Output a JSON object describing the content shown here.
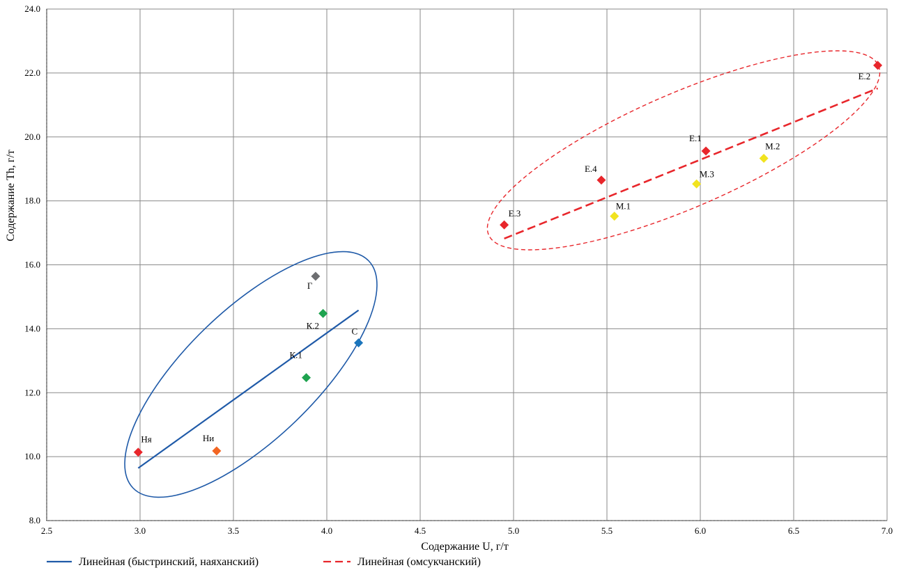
{
  "chart_data": {
    "type": "scatter",
    "xlabel": "Содержание U, г/т",
    "ylabel": "Содержание Th, г/т",
    "xlim": [
      2.5,
      7.0
    ],
    "ylim": [
      8.0,
      24.0
    ],
    "xticks": [
      "2.5",
      "3.0",
      "3.5",
      "4.0",
      "4.5",
      "5.0",
      "5.5",
      "6.0",
      "6.5",
      "7.0"
    ],
    "yticks": [
      "8.0",
      "10.0",
      "12.0",
      "14.0",
      "16.0",
      "18.0",
      "20.0",
      "22.0",
      "24.0"
    ],
    "grid": true,
    "points": [
      {
        "label": "Ня",
        "x": 2.99,
        "y": 10.14,
        "color": "#e8262b"
      },
      {
        "label": "Ни",
        "x": 3.41,
        "y": 10.18,
        "color": "#f26522"
      },
      {
        "label": "К.1",
        "x": 3.89,
        "y": 12.47,
        "color": "#1ea34f"
      },
      {
        "label": "К.2",
        "x": 3.98,
        "y": 14.48,
        "color": "#1ea34f"
      },
      {
        "label": "Г",
        "x": 3.94,
        "y": 15.64,
        "color": "#6d6e71"
      },
      {
        "label": "С",
        "x": 4.17,
        "y": 13.56,
        "color": "#1b75bc"
      },
      {
        "label": "Е.3",
        "x": 4.95,
        "y": 17.25,
        "color": "#e8262b"
      },
      {
        "label": "Е.4",
        "x": 5.47,
        "y": 18.65,
        "color": "#e8262b"
      },
      {
        "label": "Е.1",
        "x": 6.03,
        "y": 19.56,
        "color": "#e8262b"
      },
      {
        "label": "Е.2",
        "x": 6.95,
        "y": 22.24,
        "color": "#e8262b"
      },
      {
        "label": "М.1",
        "x": 5.54,
        "y": 17.52,
        "color": "#f1e31f"
      },
      {
        "label": "М.3",
        "x": 5.98,
        "y": 18.53,
        "color": "#f1e31f"
      },
      {
        "label": "М.2",
        "x": 6.34,
        "y": 19.33,
        "color": "#f1e31f"
      }
    ],
    "trendlines": [
      {
        "name": "Линейная (быстринский, наяханский)",
        "x": [
          2.99,
          4.17
        ],
        "y": [
          9.64,
          14.58
        ],
        "color": "#1f5aa8",
        "style": "solid"
      },
      {
        "name": "Линейная (омсукчанский)",
        "x": [
          4.95,
          6.95
        ],
        "y": [
          16.82,
          21.52
        ],
        "color": "#e8262b",
        "style": "dashed"
      }
    ],
    "ellipses": [
      {
        "group": "быстринский, наяханский",
        "color": "#1f5aa8",
        "style": "solid"
      },
      {
        "group": "омсукчанский",
        "color": "#e8262b",
        "style": "dashed"
      }
    ],
    "legend_position": "bottom-left"
  }
}
